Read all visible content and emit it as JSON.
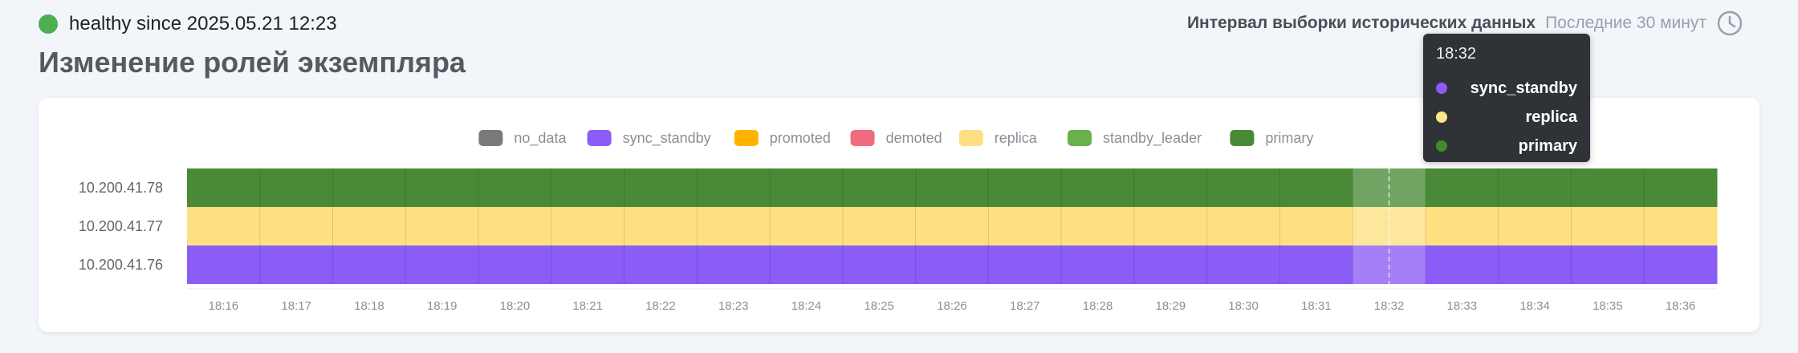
{
  "status": {
    "text": "healthy since 2025.05.21 12:23",
    "color": "#4caf50"
  },
  "page_title": "Изменение ролей экземпляра",
  "interval": {
    "label": "Интервал выборки исторических данных",
    "value": "Последние 30 минут",
    "icon": "clock-icon"
  },
  "tooltip": {
    "time": "18:32",
    "items": [
      {
        "name": "sync_standby",
        "color": "#8b5cf6"
      },
      {
        "name": "replica",
        "color": "#fde68a"
      },
      {
        "name": "primary",
        "color": "#3f8e2e"
      }
    ]
  },
  "chart_data": {
    "type": "heatmap",
    "legend": [
      {
        "name": "no_data",
        "color": "#7a7a7a"
      },
      {
        "name": "sync_standby",
        "color": "#8b5cf6"
      },
      {
        "name": "promoted",
        "color": "#ffb300"
      },
      {
        "name": "demoted",
        "color": "#f06b7d"
      },
      {
        "name": "replica",
        "color": "#fde082"
      },
      {
        "name": "standby_leader",
        "color": "#6ab04c"
      },
      {
        "name": "primary",
        "color": "#4a8a36"
      }
    ],
    "rows": [
      "10.200.41.78",
      "10.200.41.77",
      "10.200.41.76"
    ],
    "x": [
      "18:16",
      "18:17",
      "18:18",
      "18:19",
      "18:20",
      "18:21",
      "18:22",
      "18:23",
      "18:24",
      "18:25",
      "18:26",
      "18:27",
      "18:28",
      "18:29",
      "18:30",
      "18:31",
      "18:32",
      "18:33",
      "18:34",
      "18:35",
      "18:36"
    ],
    "values": [
      [
        "primary",
        "primary",
        "primary",
        "primary",
        "primary",
        "primary",
        "primary",
        "primary",
        "primary",
        "primary",
        "primary",
        "primary",
        "primary",
        "primary",
        "primary",
        "primary",
        "primary",
        "primary",
        "primary",
        "primary",
        "primary"
      ],
      [
        "replica",
        "replica",
        "replica",
        "replica",
        "replica",
        "replica",
        "replica",
        "replica",
        "replica",
        "replica",
        "replica",
        "replica",
        "replica",
        "replica",
        "replica",
        "replica",
        "replica",
        "replica",
        "replica",
        "replica",
        "replica"
      ],
      [
        "sync_standby",
        "sync_standby",
        "sync_standby",
        "sync_standby",
        "sync_standby",
        "sync_standby",
        "sync_standby",
        "sync_standby",
        "sync_standby",
        "sync_standby",
        "sync_standby",
        "sync_standby",
        "sync_standby",
        "sync_standby",
        "sync_standby",
        "sync_standby",
        "sync_standby",
        "sync_standby",
        "sync_standby",
        "sync_standby",
        "sync_standby"
      ]
    ],
    "highlighted_x": "18:32",
    "legend_position": "top-center"
  }
}
